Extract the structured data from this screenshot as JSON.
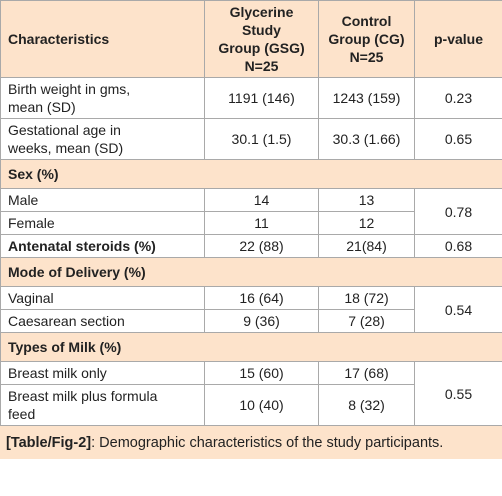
{
  "table": {
    "header": [
      "Characteristics",
      "Glycerine Study\nGroup (GSG)\nN=25",
      "Control\nGroup (CG)\nN=25",
      "p-value"
    ],
    "rows": [
      [
        "Birth weight in gms,\nmean (SD)",
        "1191 (146)",
        "1243 (159)",
        "0.23"
      ],
      [
        "Gestational age in\nweeks, mean (SD)",
        "30.1 (1.5)",
        "30.3 (1.66)",
        "0.65"
      ],
      [
        "Sex (%)"
      ],
      [
        "Male",
        "14",
        "13",
        "0.78"
      ],
      [
        "Female",
        "11",
        "12"
      ],
      [
        "Antenatal steroids (%)",
        "22 (88)",
        "21(84)",
        "0.68"
      ],
      [
        "Mode of Delivery (%)"
      ],
      [
        "Vaginal",
        "16 (64)",
        "18 (72)",
        "0.54"
      ],
      [
        "Caesarean section",
        "9 (36)",
        "7 (28)"
      ],
      [
        "Types of Milk (%)"
      ],
      [
        "Breast milk only",
        "15 (60)",
        "17 (68)",
        "0.55"
      ],
      [
        "Breast milk plus formula\nfeed",
        "10 (40)",
        "8 (32)"
      ]
    ]
  },
  "caption": {
    "label": "[Table/Fig-2]",
    "text": ": Demographic characteristics of the study participants."
  }
}
